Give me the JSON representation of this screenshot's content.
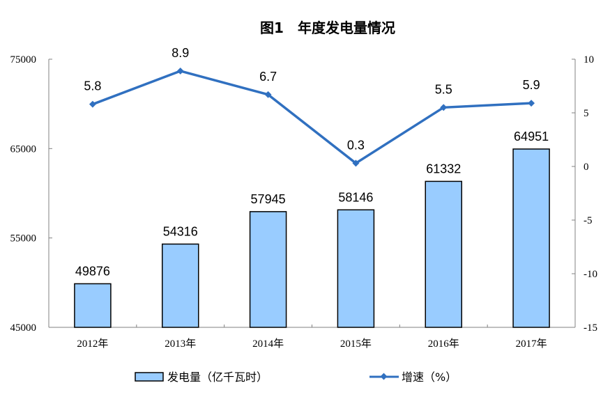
{
  "chart_data": {
    "type": "bar+line",
    "title": "图1　年度发电量情况",
    "categories": [
      "2012年",
      "2013年",
      "2014年",
      "2015年",
      "2016年",
      "2017年"
    ],
    "series": [
      {
        "name": "发电量（亿千瓦时）",
        "type": "bar",
        "axis": "left",
        "values": [
          49876,
          54316,
          57945,
          58146,
          61332,
          64951
        ],
        "labels": [
          "49876",
          "54316",
          "57945",
          "58146",
          "61332",
          "64951"
        ]
      },
      {
        "name": "增速（%）",
        "type": "line",
        "axis": "right",
        "values": [
          5.8,
          8.9,
          6.7,
          0.3,
          5.5,
          5.9
        ],
        "labels": [
          "5.8",
          "8.9",
          "6.7",
          "0.3",
          "5.5",
          "5.9"
        ]
      }
    ],
    "y_left": {
      "range": [
        45000,
        75000
      ],
      "ticks": [
        "45000",
        "55000",
        "65000",
        "75000"
      ]
    },
    "y_right": {
      "range": [
        -15,
        10
      ],
      "ticks": [
        "-15",
        "-10",
        "-5",
        "0",
        "5",
        "10"
      ]
    },
    "grid": false,
    "legend": "bottom",
    "colors": {
      "bar_fill": "#99CCFF",
      "bar_border": "#000000",
      "line": "#3070C0"
    }
  }
}
